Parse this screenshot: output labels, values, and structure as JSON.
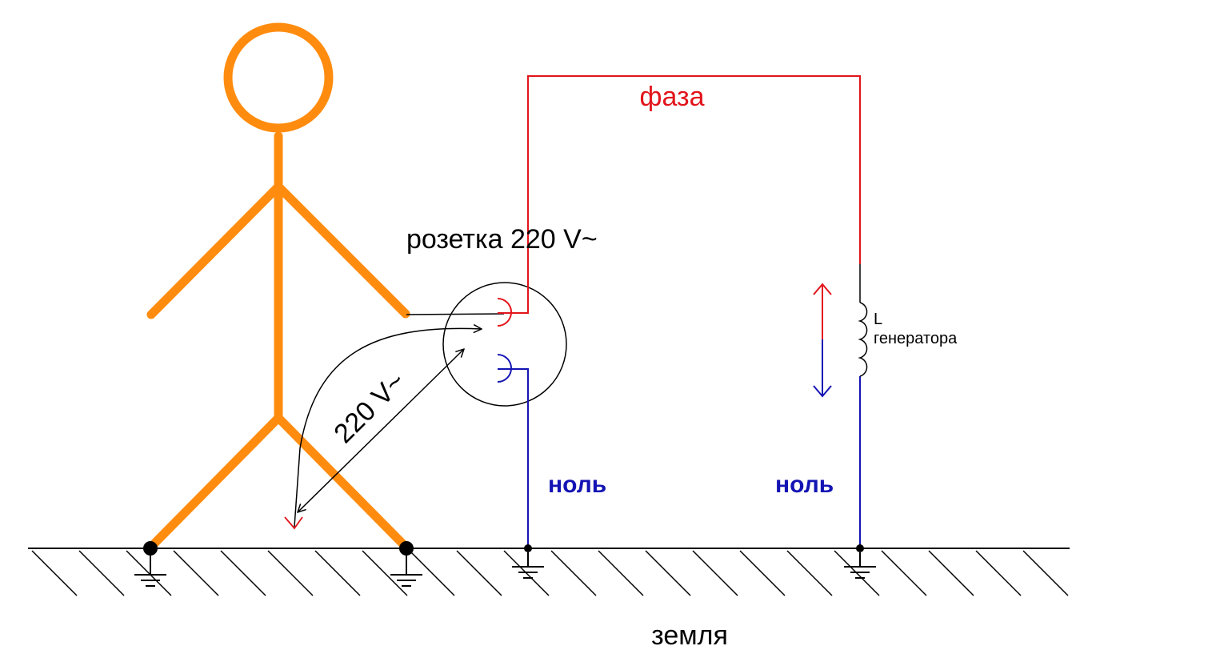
{
  "labels": {
    "phase": "фаза",
    "socket": "розетка 220 V~",
    "voltage": "220 V~",
    "neutral_socket": "ноль",
    "neutral_generator": "ноль",
    "generator_l": "L",
    "generator_text": "генератора",
    "ground": "земля"
  },
  "colors": {
    "person": "#ff8c0f",
    "phase": "#e2141b",
    "neutral": "#1414b4",
    "line": "#000000"
  }
}
